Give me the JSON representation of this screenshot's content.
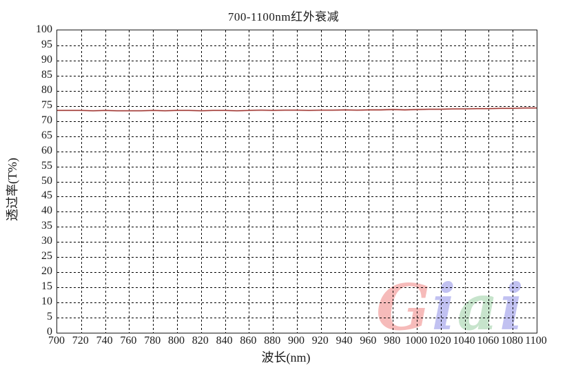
{
  "chart": {
    "title": "700-1100nm红外衰减",
    "x_axis_label": "波长(nm)",
    "y_axis_label": "透过率(T%)"
  },
  "watermark": {
    "text": "Giai",
    "letters": [
      {
        "char": "G",
        "color": "#f29390"
      },
      {
        "char": "i",
        "color": "#9c9ce9"
      },
      {
        "char": "a",
        "color": "#a6d5ad"
      },
      {
        "char": "i",
        "color": "#9c9ce9"
      }
    ]
  },
  "chart_data": {
    "type": "line",
    "title": "700-1100nm红外衰减",
    "xlabel": "波长(nm)",
    "ylabel": "透过率(T%)",
    "xlim": [
      700,
      1100
    ],
    "ylim": [
      0,
      100
    ],
    "x_ticks": [
      700,
      720,
      740,
      760,
      780,
      800,
      820,
      840,
      860,
      880,
      900,
      920,
      940,
      960,
      980,
      1000,
      1020,
      1040,
      1060,
      1080,
      1100
    ],
    "y_ticks": [
      0,
      5,
      10,
      15,
      20,
      25,
      30,
      35,
      40,
      45,
      50,
      55,
      60,
      65,
      70,
      75,
      80,
      85,
      90,
      95,
      100
    ],
    "grid": "dashed, both axes, black",
    "legend": "none",
    "line_color": "#9e3a36",
    "line_halo_color": "#e9b7b3",
    "series": [
      {
        "name": "透过率",
        "x": [
          700,
          710,
          720,
          730,
          740,
          750,
          760,
          770,
          780,
          790,
          800,
          810,
          820,
          830,
          840,
          850,
          860,
          870,
          880,
          890,
          900,
          910,
          920,
          930,
          940,
          950,
          960,
          970,
          980,
          990,
          1000,
          1010,
          1020,
          1030,
          1040,
          1050,
          1060,
          1070,
          1080,
          1090,
          1100
        ],
        "y": [
          73.5,
          73.5,
          73.5,
          73.4,
          73.5,
          73.4,
          73.4,
          73.4,
          73.5,
          73.4,
          73.5,
          73.5,
          73.4,
          73.5,
          73.5,
          73.4,
          73.5,
          73.6,
          73.5,
          73.6,
          73.6,
          73.5,
          73.6,
          73.6,
          73.7,
          73.6,
          73.7,
          73.7,
          73.8,
          73.7,
          73.8,
          73.9,
          73.9,
          74.0,
          74.0,
          74.1,
          74.1,
          74.2,
          74.2,
          74.3,
          74.3
        ]
      }
    ]
  }
}
